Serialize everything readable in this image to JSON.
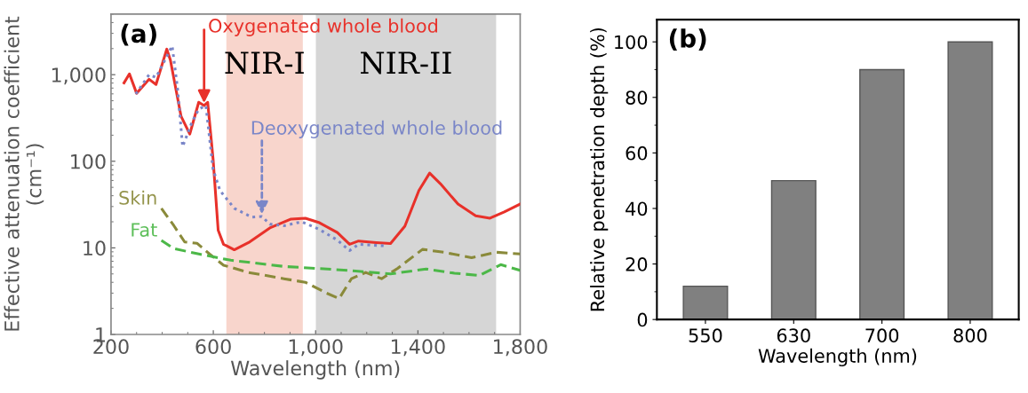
{
  "chart_data": [
    {
      "type": "line",
      "title": "(a)",
      "xlabel": "Wavelength (nm)",
      "ylabel": "Effective attenuation coefficient\n(cm⁻¹)",
      "log": "y",
      "xlim": [
        200,
        1800
      ],
      "ylim": [
        1,
        5000
      ],
      "xticks": [
        200,
        600,
        {
          "value": 1000,
          "label": "1,000"
        },
        {
          "value": 1400,
          "label": "1,400"
        },
        {
          "value": 1800,
          "label": "1,800"
        }
      ],
      "yticks": [
        1,
        10,
        100,
        {
          "value": 1000,
          "label": "1,000"
        }
      ],
      "grid": false,
      "legend": false,
      "series": [
        {
          "color": "#e8312a",
          "line_style": "solid",
          "x": [
            251,
            272,
            300,
            349,
            376,
            418,
            432,
            474,
            508,
            543,
            564,
            578,
            599,
            619,
            640,
            682,
            738,
            821,
            904,
            960,
            1015,
            1085,
            1133,
            1168,
            1237,
            1293,
            1349,
            1404,
            1446,
            1488,
            1557,
            1626,
            1682,
            1738,
            1800
          ],
          "values": [
            805,
            1020,
            610,
            885,
            770,
            1970,
            1480,
            330,
            206,
            480,
            440,
            480,
            107,
            16,
            11,
            9.5,
            11.5,
            17,
            21.5,
            22,
            19.5,
            15,
            11,
            12,
            11.5,
            11.2,
            17.8,
            46,
            73,
            55,
            32,
            23.4,
            22,
            26,
            32
          ]
        },
        {
          "color": "#7a86c8",
          "line_style": "dotted",
          "x": [
            297,
            349,
            376,
            439,
            460,
            480,
            515,
            543,
            571,
            599,
            626,
            682,
            751,
            790,
            821,
            876,
            946,
            1015,
            1085,
            1133,
            1168,
            1279
          ],
          "values": [
            600,
            1000,
            930,
            2150,
            700,
            148,
            275,
            400,
            440,
            81,
            46,
            28.6,
            22.6,
            23,
            18.8,
            18,
            20,
            16.3,
            12.3,
            9.3,
            11,
            10.5
          ]
        },
        {
          "name": "Skin",
          "color": "#8a8a3a",
          "line_style": "dashed",
          "x": [
            397,
            446,
            488,
            536,
            585,
            640,
            738,
            876,
            960,
            1043,
            1092,
            1140,
            1196,
            1258,
            1321,
            1418,
            1501,
            1610,
            1707,
            1800
          ],
          "values": [
            28.6,
            18,
            11.7,
            11.3,
            8.5,
            6.3,
            5.2,
            4.4,
            4.0,
            3.0,
            2.6,
            4.4,
            5.2,
            4.4,
            5.8,
            9.6,
            8.9,
            7.7,
            8.9,
            8.5
          ]
        },
        {
          "name": "Fat",
          "color": "#4cb848",
          "line_style": "dashed",
          "x": [
            397,
            446,
            543,
            668,
            876,
            1126,
            1293,
            1432,
            1543,
            1640,
            1724,
            1800
          ],
          "values": [
            12.2,
            9.8,
            8.5,
            7.2,
            6.1,
            5.5,
            5.0,
            5.7,
            5.1,
            4.8,
            6.4,
            5.5
          ]
        }
      ],
      "bands": [
        {
          "axis": "x",
          "from": 651,
          "to": 950,
          "label": "NIR-I",
          "color": "#f8d5cc"
        },
        {
          "axis": "x",
          "from": 1001,
          "to": 1706,
          "label": "NIR-II",
          "color": "#d6d6d6"
        }
      ],
      "annotations": [
        {
          "text": "Oxygenated whole blood",
          "x": 564,
          "y": 440
        },
        {
          "text": "Deoxygenated whole blood",
          "x": 790,
          "y": 23
        }
      ]
    },
    {
      "type": "bar",
      "title": "(b)",
      "xlabel": "Wavelength (nm)",
      "ylabel": "Relative penetration depth (%)",
      "categories": [
        "550",
        "630",
        "700",
        "800"
      ],
      "values": [
        12,
        50,
        90,
        100
      ],
      "color": "#808080",
      "ylim": [
        0,
        108
      ],
      "yticks": [
        0,
        20,
        40,
        60,
        80,
        100
      ],
      "grid": false
    }
  ]
}
